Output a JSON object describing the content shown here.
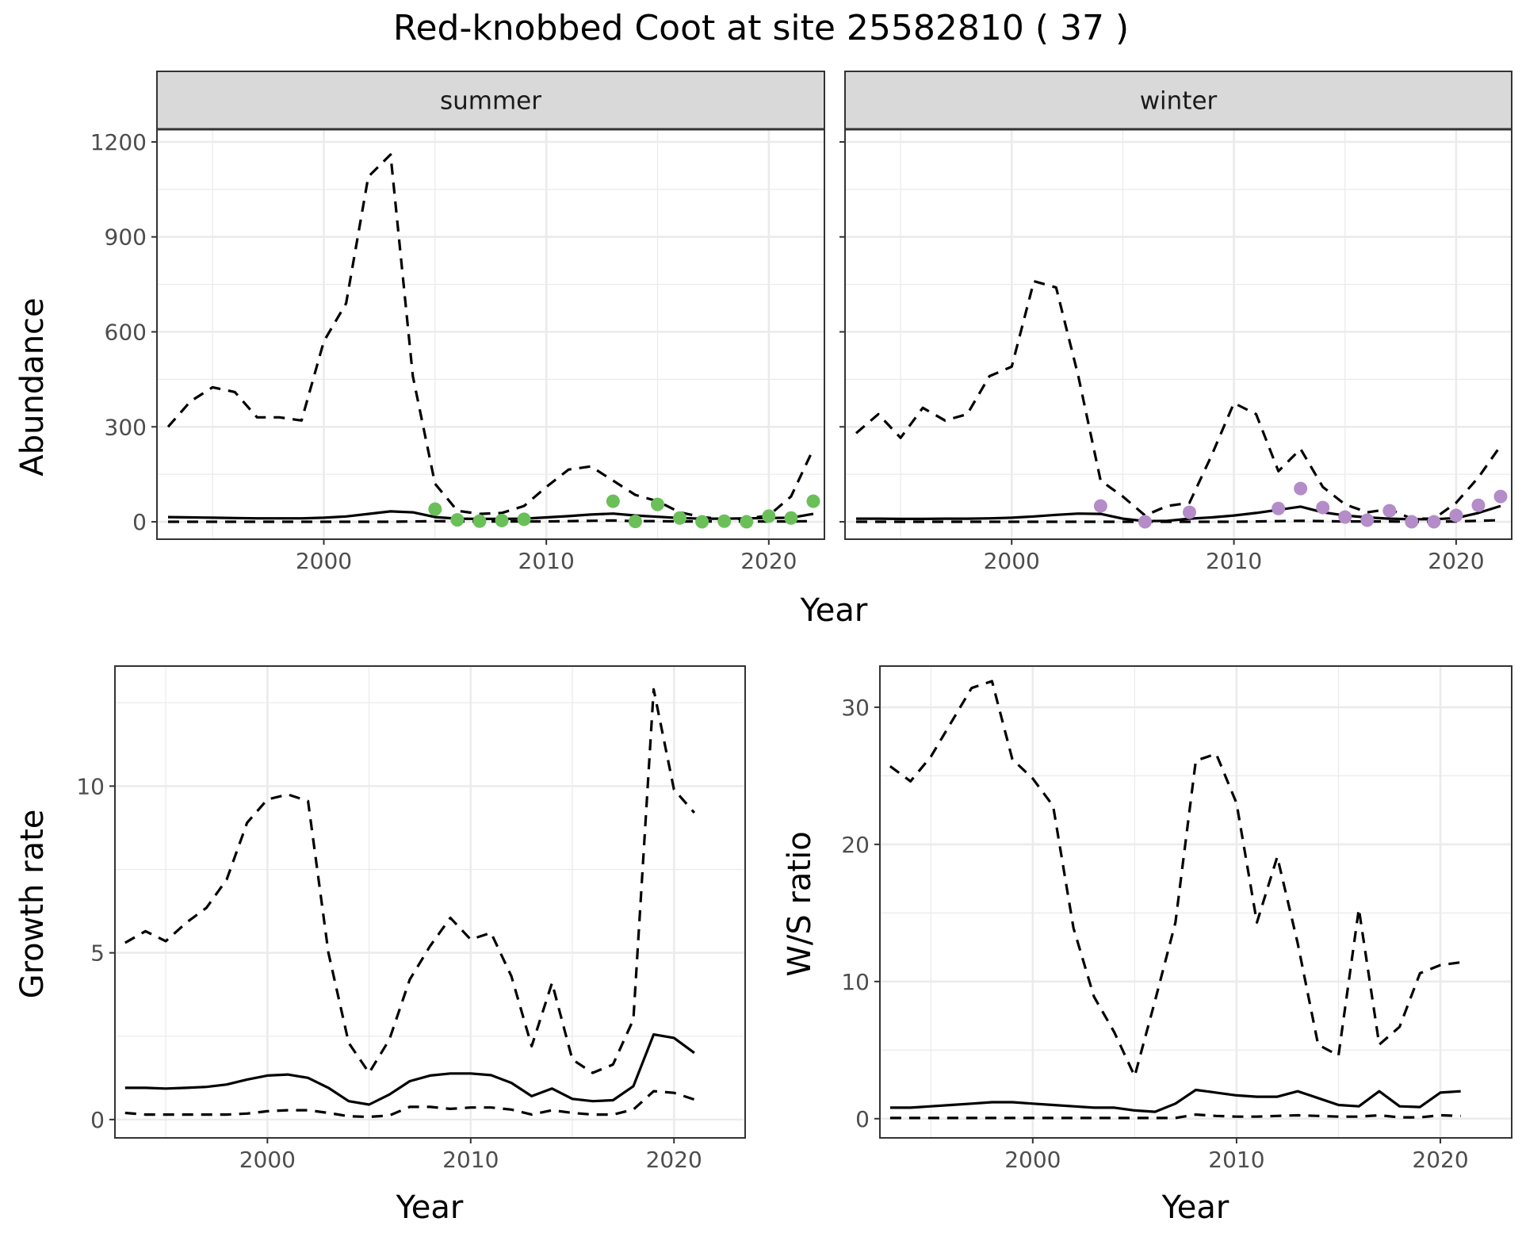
{
  "title": "Red-knobbed Coot at site 25582810 ( 37 )",
  "colors": {
    "summer_points": "#6abf59",
    "winter_points": "#b38cc8",
    "lines": "#000000",
    "strip_bg": "#d9d9d9"
  },
  "chart_data": [
    {
      "type": "line",
      "facet": "summer",
      "xlabel": "Year",
      "ylabel": "Abundance",
      "xlim": [
        1992.5,
        2022.5
      ],
      "ylim": [
        -55,
        1240
      ],
      "xticks": [
        2000,
        2010,
        2020
      ],
      "yticks": [
        0,
        300,
        600,
        900,
        1200
      ],
      "grid": true,
      "x": [
        1993,
        1994,
        1995,
        1996,
        1997,
        1998,
        1999,
        2000,
        2001,
        2002,
        2003,
        2004,
        2005,
        2006,
        2007,
        2008,
        2009,
        2010,
        2011,
        2012,
        2013,
        2014,
        2015,
        2016,
        2017,
        2018,
        2019,
        2020,
        2021,
        2022
      ],
      "series": [
        {
          "role": "estimate",
          "style": "solid",
          "values": [
            15,
            14,
            13,
            12,
            11,
            11,
            11,
            13,
            17,
            25,
            33,
            30,
            15,
            10,
            9,
            9,
            10,
            14,
            18,
            23,
            26,
            20,
            16,
            12,
            10,
            10,
            11,
            12,
            13,
            25
          ]
        },
        {
          "role": "upper",
          "style": "dashed",
          "values": [
            300,
            380,
            425,
            410,
            330,
            330,
            320,
            570,
            690,
            1090,
            1160,
            460,
            120,
            35,
            25,
            28,
            50,
            110,
            165,
            175,
            130,
            85,
            65,
            30,
            15,
            8,
            10,
            20,
            80,
            230
          ]
        },
        {
          "role": "lower",
          "style": "dashed",
          "values": [
            0,
            0,
            0,
            0,
            0,
            0,
            0,
            0,
            0,
            0,
            0,
            1,
            2,
            1,
            1,
            1,
            1,
            1,
            2,
            3,
            4,
            2,
            2,
            1,
            1,
            1,
            1,
            1,
            1,
            2
          ]
        }
      ],
      "points": [
        {
          "x": 2005,
          "y": 40
        },
        {
          "x": 2006,
          "y": 6
        },
        {
          "x": 2007,
          "y": 2
        },
        {
          "x": 2008,
          "y": 4
        },
        {
          "x": 2009,
          "y": 8
        },
        {
          "x": 2013,
          "y": 65
        },
        {
          "x": 2014,
          "y": 1
        },
        {
          "x": 2015,
          "y": 55
        },
        {
          "x": 2016,
          "y": 12
        },
        {
          "x": 2017,
          "y": 0
        },
        {
          "x": 2018,
          "y": 2
        },
        {
          "x": 2019,
          "y": 0
        },
        {
          "x": 2020,
          "y": 18
        },
        {
          "x": 2021,
          "y": 12
        },
        {
          "x": 2022,
          "y": 65
        }
      ]
    },
    {
      "type": "line",
      "facet": "winter",
      "xlabel": "Year",
      "ylabel": "Abundance",
      "xlim": [
        1992.5,
        2022.5
      ],
      "ylim": [
        -55,
        1240
      ],
      "xticks": [
        2000,
        2010,
        2020
      ],
      "yticks": [
        0,
        300,
        600,
        900,
        1200
      ],
      "grid": true,
      "x": [
        1993,
        1994,
        1995,
        1996,
        1997,
        1998,
        1999,
        2000,
        2001,
        2002,
        2003,
        2004,
        2005,
        2006,
        2007,
        2008,
        2009,
        2010,
        2011,
        2012,
        2013,
        2014,
        2015,
        2016,
        2017,
        2018,
        2019,
        2020,
        2021,
        2022
      ],
      "series": [
        {
          "role": "estimate",
          "style": "solid",
          "values": [
            10,
            10,
            9,
            9,
            10,
            10,
            11,
            13,
            17,
            22,
            26,
            25,
            10,
            2,
            3,
            10,
            14,
            20,
            28,
            38,
            48,
            30,
            20,
            14,
            10,
            8,
            8,
            12,
            28,
            50
          ]
        },
        {
          "role": "upper",
          "style": "dashed",
          "values": [
            280,
            340,
            265,
            360,
            320,
            340,
            460,
            490,
            760,
            740,
            460,
            130,
            80,
            20,
            50,
            60,
            210,
            375,
            340,
            160,
            230,
            110,
            55,
            30,
            40,
            10,
            10,
            60,
            140,
            240
          ]
        },
        {
          "role": "lower",
          "style": "dashed",
          "values": [
            0,
            0,
            0,
            0,
            0,
            0,
            0,
            0,
            0,
            0,
            0,
            0,
            0,
            0,
            0,
            0,
            0,
            0,
            1,
            2,
            3,
            2,
            1,
            1,
            1,
            0,
            0,
            1,
            3,
            5
          ]
        }
      ],
      "points": [
        {
          "x": 2004,
          "y": 50
        },
        {
          "x": 2006,
          "y": 0
        },
        {
          "x": 2008,
          "y": 30
        },
        {
          "x": 2012,
          "y": 42
        },
        {
          "x": 2013,
          "y": 105
        },
        {
          "x": 2014,
          "y": 45
        },
        {
          "x": 2015,
          "y": 15
        },
        {
          "x": 2016,
          "y": 5
        },
        {
          "x": 2017,
          "y": 35
        },
        {
          "x": 2018,
          "y": 0
        },
        {
          "x": 2019,
          "y": 0
        },
        {
          "x": 2020,
          "y": 20
        },
        {
          "x": 2021,
          "y": 52
        },
        {
          "x": 2022,
          "y": 80
        }
      ]
    },
    {
      "type": "line",
      "xlabel": "Year",
      "ylabel": "Growth rate",
      "xlim": [
        1992.5,
        2023.5
      ],
      "ylim": [
        -0.55,
        13.6
      ],
      "xticks": [
        2000,
        2010,
        2020
      ],
      "yticks": [
        0,
        5,
        10
      ],
      "grid": true,
      "x": [
        1993,
        1994,
        1995,
        1996,
        1997,
        1998,
        1999,
        2000,
        2001,
        2002,
        2003,
        2004,
        2005,
        2006,
        2007,
        2008,
        2009,
        2010,
        2011,
        2012,
        2013,
        2014,
        2015,
        2016,
        2017,
        2018,
        2019,
        2020,
        2021
      ],
      "series": [
        {
          "role": "estimate",
          "style": "solid",
          "values": [
            0.95,
            0.95,
            0.93,
            0.95,
            0.98,
            1.05,
            1.2,
            1.32,
            1.35,
            1.25,
            0.95,
            0.55,
            0.45,
            0.75,
            1.15,
            1.32,
            1.38,
            1.38,
            1.33,
            1.1,
            0.7,
            0.93,
            0.62,
            0.55,
            0.58,
            1.0,
            2.55,
            2.45,
            2.0
          ]
        },
        {
          "role": "upper",
          "style": "dashed",
          "values": [
            5.3,
            5.65,
            5.35,
            5.9,
            6.35,
            7.2,
            8.9,
            9.6,
            9.75,
            9.55,
            5.0,
            2.3,
            1.4,
            2.4,
            4.2,
            5.2,
            6.05,
            5.4,
            5.6,
            4.3,
            2.2,
            4.1,
            1.8,
            1.4,
            1.65,
            3.0,
            12.9,
            9.9,
            9.2
          ]
        },
        {
          "role": "lower",
          "style": "dashed",
          "values": [
            0.2,
            0.15,
            0.15,
            0.15,
            0.15,
            0.15,
            0.18,
            0.25,
            0.28,
            0.28,
            0.2,
            0.1,
            0.08,
            0.12,
            0.38,
            0.38,
            0.32,
            0.36,
            0.36,
            0.3,
            0.15,
            0.28,
            0.2,
            0.15,
            0.15,
            0.3,
            0.85,
            0.8,
            0.6
          ]
        }
      ]
    },
    {
      "type": "line",
      "xlabel": "Year",
      "ylabel": "W/S ratio",
      "xlim": [
        1992.5,
        2023.5
      ],
      "ylim": [
        -1.4,
        33.0
      ],
      "xticks": [
        2000,
        2010,
        2020
      ],
      "yticks": [
        0,
        10,
        20,
        30
      ],
      "grid": true,
      "x": [
        1993,
        1994,
        1995,
        1996,
        1997,
        1998,
        1999,
        2000,
        2001,
        2002,
        2003,
        2004,
        2005,
        2006,
        2007,
        2008,
        2009,
        2010,
        2011,
        2012,
        2013,
        2014,
        2015,
        2016,
        2017,
        2018,
        2019,
        2020,
        2021
      ],
      "series": [
        {
          "role": "estimate",
          "style": "solid",
          "values": [
            0.8,
            0.8,
            0.9,
            1.0,
            1.1,
            1.2,
            1.2,
            1.1,
            1.0,
            0.9,
            0.8,
            0.8,
            0.6,
            0.5,
            1.1,
            2.1,
            1.9,
            1.7,
            1.6,
            1.6,
            2.0,
            1.5,
            1.0,
            0.9,
            2.0,
            0.9,
            0.85,
            1.9,
            2.0
          ]
        },
        {
          "role": "upper",
          "style": "dashed",
          "values": [
            25.7,
            24.6,
            26.4,
            28.9,
            31.4,
            31.9,
            26.2,
            24.8,
            22.8,
            13.9,
            8.9,
            6.3,
            3.1,
            8.6,
            14.3,
            26.1,
            26.6,
            23.0,
            14.3,
            19.1,
            12.8,
            5.4,
            4.6,
            15.3,
            5.4,
            6.7,
            10.6,
            11.2,
            11.4
          ]
        },
        {
          "role": "lower",
          "style": "dashed",
          "values": [
            0.05,
            0.05,
            0.05,
            0.05,
            0.05,
            0.05,
            0.05,
            0.05,
            0.05,
            0.05,
            0.05,
            0.05,
            0.05,
            0.05,
            0.05,
            0.3,
            0.2,
            0.15,
            0.15,
            0.2,
            0.25,
            0.2,
            0.15,
            0.15,
            0.25,
            0.1,
            0.1,
            0.25,
            0.2
          ]
        }
      ]
    }
  ]
}
